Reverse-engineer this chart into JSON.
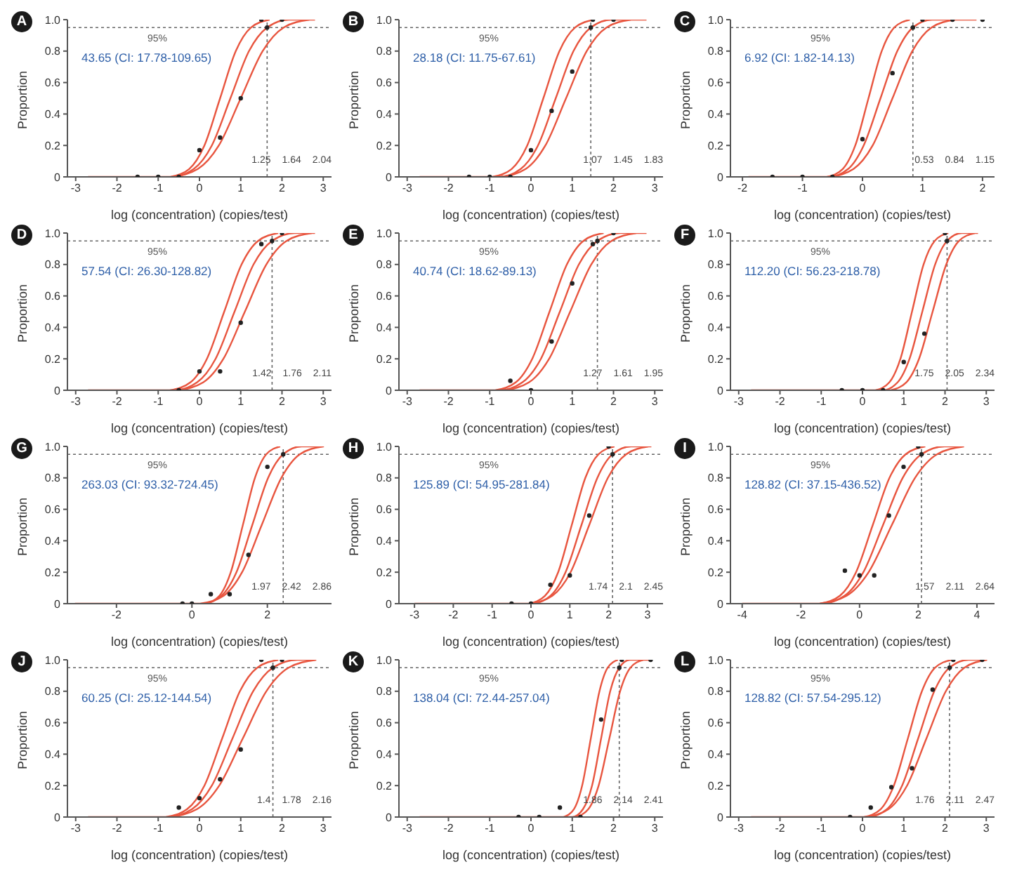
{
  "chart_data": [
    {
      "type": "line",
      "title": "A",
      "xlabel": "log (concentration) (copies/test)",
      "ylabel": "Proportion",
      "xlim": [
        -3.2,
        3.2
      ],
      "xticks": [
        -3,
        -2,
        -1,
        0,
        1,
        2,
        3
      ],
      "ylim": [
        0,
        1
      ],
      "yticks": [
        {
          "value": 0,
          "label": "0"
        },
        {
          "value": 0.2,
          "label": "0.2"
        },
        {
          "value": 0.4,
          "label": "0.4"
        },
        {
          "value": 0.6,
          "label": "0.6"
        },
        {
          "value": 0.8,
          "label": "0.8"
        },
        {
          "value": 1,
          "label": "1.0"
        }
      ],
      "line_style": "solid",
      "series": [
        {
          "color": "#e8553f",
          "x": [
            -0.7,
            -0.25,
            0.12,
            0.5,
            0.88,
            1.25,
            1.7
          ],
          "values": [
            0,
            0.05,
            0.2,
            0.5,
            0.8,
            0.95,
            1
          ]
        },
        {
          "color": "#e8553f",
          "x": [
            -2.7,
            -0.67,
            -0.14,
            0.3,
            0.75,
            1.2,
            1.64,
            2.17,
            2.8
          ],
          "values": [
            0,
            0,
            0.05,
            0.2,
            0.5,
            0.8,
            0.95,
            1,
            1
          ]
        },
        {
          "color": "#e8553f",
          "x": [
            -0.66,
            -0.04,
            0.47,
            1.0,
            1.53,
            2.04,
            2.66
          ],
          "values": [
            0,
            0.05,
            0.2,
            0.5,
            0.8,
            0.95,
            1
          ]
        },
        {
          "type": "scatter",
          "marker": "circle",
          "color": "#222222",
          "x": [
            -1.5,
            -1,
            -0.5,
            0,
            0.5,
            1,
            1.5,
            1.64,
            2
          ],
          "values": [
            0,
            0,
            0,
            0.17,
            0.25,
            0.5,
            1,
            0.95,
            1
          ]
        }
      ],
      "ref_lines": [
        {
          "axis": "y",
          "value": 0.95,
          "label": "95%",
          "line_style": "dotted",
          "color": "#666666"
        },
        {
          "axis": "x",
          "value": 1.64,
          "line_style": "dotted",
          "color": "#666666"
        }
      ],
      "annotations": [
        "43.65 (CI: 17.78-109.65)",
        "1.25",
        "1.64",
        "2.04"
      ]
    },
    {
      "type": "line",
      "title": "B",
      "xlabel": "log (concentration) (copies/test)",
      "ylabel": "Proportion",
      "xlim": [
        -3.2,
        3.2
      ],
      "xticks": [
        -3,
        -2,
        -1,
        0,
        1,
        2,
        3
      ],
      "ylim": [
        0,
        1
      ],
      "yticks": [
        {
          "value": 0,
          "label": "0"
        },
        {
          "value": 0.2,
          "label": "0.2"
        },
        {
          "value": 0.4,
          "label": "0.4"
        },
        {
          "value": 0.6,
          "label": "0.6"
        },
        {
          "value": 0.8,
          "label": "0.8"
        },
        {
          "value": 1,
          "label": "1.0"
        }
      ],
      "line_style": "solid",
      "series": [
        {
          "color": "#e8553f",
          "x": [
            -0.93,
            -0.47,
            -0.09,
            0.3,
            0.69,
            1.07,
            1.53
          ],
          "values": [
            0,
            0.05,
            0.2,
            0.5,
            0.8,
            0.95,
            1
          ]
        },
        {
          "color": "#e8553f",
          "x": [
            -2.7,
            -0.76,
            -0.25,
            0.17,
            0.6,
            1.03,
            1.45,
            1.96,
            2.8
          ],
          "values": [
            0,
            0,
            0.05,
            0.2,
            0.5,
            0.8,
            0.95,
            1,
            1
          ]
        },
        {
          "color": "#e8553f",
          "x": [
            -0.72,
            -0.13,
            0.35,
            0.85,
            1.35,
            1.83,
            2.42
          ],
          "values": [
            0,
            0.05,
            0.2,
            0.5,
            0.8,
            0.95,
            1
          ]
        },
        {
          "type": "scatter",
          "marker": "circle",
          "color": "#222222",
          "x": [
            -1.5,
            -1,
            -0.5,
            0,
            0.5,
            1,
            1.45,
            1.5,
            2
          ],
          "values": [
            0,
            0,
            0,
            0.17,
            0.42,
            0.67,
            0.95,
            1,
            1
          ]
        }
      ],
      "ref_lines": [
        {
          "axis": "y",
          "value": 0.95,
          "label": "95%",
          "line_style": "dotted",
          "color": "#666666"
        },
        {
          "axis": "x",
          "value": 1.45,
          "line_style": "dotted",
          "color": "#666666"
        }
      ],
      "annotations": [
        "28.18 (CI: 11.75-67.61)",
        "1.07",
        "1.45",
        "1.83"
      ]
    },
    {
      "type": "line",
      "title": "C",
      "xlabel": "log (concentration) (copies/test)",
      "ylabel": "Proportion",
      "xlim": [
        -2.2,
        2.2
      ],
      "xticks": [
        -2,
        -1,
        0,
        1,
        2
      ],
      "ylim": [
        0,
        1
      ],
      "yticks": [
        {
          "value": 0,
          "label": "0"
        },
        {
          "value": 0.2,
          "label": "0.2"
        },
        {
          "value": 0.4,
          "label": "0.4"
        },
        {
          "value": 0.6,
          "label": "0.6"
        },
        {
          "value": 0.8,
          "label": "0.8"
        },
        {
          "value": 1,
          "label": "1.0"
        }
      ],
      "line_style": "solid",
      "series": [
        {
          "color": "#e8553f",
          "x": [
            -0.59,
            -0.33,
            -0.12,
            0.1,
            0.32,
            0.53,
            0.79
          ],
          "values": [
            0,
            0.05,
            0.2,
            0.5,
            0.8,
            0.95,
            1
          ]
        },
        {
          "color": "#e8553f",
          "x": [
            -1.9,
            -0.56,
            -0.24,
            0.02,
            0.3,
            0.58,
            0.84,
            1.16,
            1.9
          ],
          "values": [
            0,
            0,
            0.05,
            0.2,
            0.5,
            0.8,
            0.95,
            1,
            1
          ]
        },
        {
          "color": "#e8553f",
          "x": [
            -0.54,
            -0.15,
            0.17,
            0.5,
            0.83,
            1.15,
            1.54
          ],
          "values": [
            0,
            0.05,
            0.2,
            0.5,
            0.8,
            0.95,
            1
          ]
        },
        {
          "type": "scatter",
          "marker": "circle",
          "color": "#222222",
          "x": [
            -1.5,
            -1,
            -0.5,
            0,
            0.5,
            0.84,
            1,
            1.5,
            2
          ],
          "values": [
            0,
            0,
            0,
            0.24,
            0.66,
            0.95,
            1,
            1,
            1
          ]
        }
      ],
      "ref_lines": [
        {
          "axis": "y",
          "value": 0.95,
          "label": "95%",
          "line_style": "dotted",
          "color": "#666666"
        },
        {
          "axis": "x",
          "value": 0.84,
          "line_style": "dotted",
          "color": "#666666"
        }
      ],
      "annotations": [
        "6.92 (CI: 1.82-14.13)",
        "0.53",
        "0.84",
        "1.15"
      ]
    },
    {
      "type": "line",
      "title": "D",
      "xlabel": "log (concentration) (copies/test)",
      "ylabel": "Proportion",
      "xlim": [
        -3.2,
        3.2
      ],
      "xticks": [
        -3,
        -2,
        -1,
        0,
        1,
        2,
        3
      ],
      "ylim": [
        0,
        1
      ],
      "yticks": [
        {
          "value": 0,
          "label": "0"
        },
        {
          "value": 0.2,
          "label": "0.2"
        },
        {
          "value": 0.4,
          "label": "0.4"
        },
        {
          "value": 0.6,
          "label": "0.6"
        },
        {
          "value": 0.8,
          "label": "0.8"
        },
        {
          "value": 1,
          "label": "1.0"
        }
      ],
      "line_style": "solid",
      "series": [
        {
          "color": "#e8553f",
          "x": [
            -0.71,
            -0.22,
            0.18,
            0.6,
            1.02,
            1.42,
            1.91
          ],
          "values": [
            0,
            0.05,
            0.2,
            0.5,
            0.8,
            0.95,
            1
          ]
        },
        {
          "color": "#e8553f",
          "x": [
            -2.7,
            -0.61,
            -0.06,
            0.39,
            0.85,
            1.31,
            1.76,
            2.31,
            2.8
          ],
          "values": [
            0,
            0,
            0.05,
            0.2,
            0.5,
            0.8,
            0.95,
            1,
            1
          ]
        },
        {
          "color": "#e8553f",
          "x": [
            -0.52,
            0.09,
            0.58,
            1.1,
            1.62,
            2.11,
            2.72
          ],
          "values": [
            0,
            0.05,
            0.2,
            0.5,
            0.8,
            0.95,
            1
          ]
        },
        {
          "type": "scatter",
          "marker": "circle",
          "color": "#222222",
          "x": [
            -0.5,
            0,
            0.5,
            1,
            1.5,
            1.76,
            2
          ],
          "values": [
            0,
            0.12,
            0.12,
            0.43,
            0.93,
            0.95,
            1
          ]
        }
      ],
      "ref_lines": [
        {
          "axis": "y",
          "value": 0.95,
          "label": "95%",
          "line_style": "dotted",
          "color": "#666666"
        },
        {
          "axis": "x",
          "value": 1.76,
          "line_style": "dotted",
          "color": "#666666"
        }
      ],
      "annotations": [
        "57.54 (CI: 26.30-128.82)",
        "1.42",
        "1.76",
        "2.11"
      ]
    },
    {
      "type": "line",
      "title": "E",
      "xlabel": "log (concentration) (copies/test)",
      "ylabel": "Proportion",
      "xlim": [
        -3.2,
        3.2
      ],
      "xticks": [
        -3,
        -2,
        -1,
        0,
        1,
        2,
        3
      ],
      "ylim": [
        0,
        1
      ],
      "yticks": [
        {
          "value": 0,
          "label": "0"
        },
        {
          "value": 0.2,
          "label": "0.2"
        },
        {
          "value": 0.4,
          "label": "0.4"
        },
        {
          "value": 0.6,
          "label": "0.6"
        },
        {
          "value": 0.8,
          "label": "0.8"
        },
        {
          "value": 1,
          "label": "1.0"
        }
      ],
      "line_style": "solid",
      "series": [
        {
          "color": "#e8553f",
          "x": [
            -0.86,
            -0.37,
            0.03,
            0.45,
            0.87,
            1.27,
            1.76
          ],
          "values": [
            0,
            0.05,
            0.2,
            0.5,
            0.8,
            0.95,
            1
          ]
        },
        {
          "color": "#e8553f",
          "x": [
            -2.7,
            -0.76,
            -0.21,
            0.24,
            0.7,
            1.16,
            1.61,
            2.16,
            2.8
          ],
          "values": [
            0,
            0,
            0.05,
            0.2,
            0.5,
            0.8,
            0.95,
            1,
            1
          ]
        },
        {
          "color": "#e8553f",
          "x": [
            -0.65,
            -0.05,
            0.44,
            0.95,
            1.46,
            1.95,
            2.55
          ],
          "values": [
            0,
            0.05,
            0.2,
            0.5,
            0.8,
            0.95,
            1
          ]
        },
        {
          "type": "scatter",
          "marker": "circle",
          "color": "#222222",
          "x": [
            -0.5,
            0,
            0.5,
            1,
            1.5,
            1.61,
            2
          ],
          "values": [
            0.06,
            0,
            0.31,
            0.68,
            0.93,
            0.95,
            1
          ]
        }
      ],
      "ref_lines": [
        {
          "axis": "y",
          "value": 0.95,
          "label": "95%",
          "line_style": "dotted",
          "color": "#666666"
        },
        {
          "axis": "x",
          "value": 1.61,
          "line_style": "dotted",
          "color": "#666666"
        }
      ],
      "annotations": [
        "40.74 (CI: 18.62-89.13)",
        "1.27",
        "1.61",
        "1.95"
      ]
    },
    {
      "type": "line",
      "title": "F",
      "xlabel": "log (concentration) (copies/test)",
      "ylabel": "Proportion",
      "xlim": [
        -3.2,
        3.2
      ],
      "xticks": [
        -3,
        -2,
        -1,
        0,
        1,
        2,
        3
      ],
      "ylim": [
        0,
        1
      ],
      "yticks": [
        {
          "value": 0,
          "label": "0"
        },
        {
          "value": 0.2,
          "label": "0.2"
        },
        {
          "value": 0.4,
          "label": "0.4"
        },
        {
          "value": 0.6,
          "label": "0.6"
        },
        {
          "value": 0.8,
          "label": "0.8"
        },
        {
          "value": 1,
          "label": "1.0"
        }
      ],
      "line_style": "solid",
      "series": [
        {
          "color": "#e8553f",
          "x": [
            0.32,
            0.65,
            0.92,
            1.2,
            1.48,
            1.75,
            2.08
          ],
          "values": [
            0,
            0.05,
            0.2,
            0.5,
            0.8,
            0.95,
            1
          ]
        },
        {
          "color": "#e8553f",
          "x": [
            -2.7,
            0.49,
            0.85,
            1.14,
            1.45,
            1.76,
            2.05,
            2.41,
            2.8
          ],
          "values": [
            0,
            0,
            0.05,
            0.2,
            0.5,
            0.8,
            0.95,
            1,
            1
          ]
        },
        {
          "color": "#e8553f",
          "x": [
            0.68,
            1.06,
            1.37,
            1.7,
            2.03,
            2.34,
            2.72
          ],
          "values": [
            0,
            0.05,
            0.2,
            0.5,
            0.8,
            0.95,
            1
          ]
        },
        {
          "type": "scatter",
          "marker": "circle",
          "color": "#222222",
          "x": [
            -0.5,
            0,
            0.5,
            1,
            1.5,
            2,
            2.05
          ],
          "values": [
            0,
            0,
            0,
            0.18,
            0.36,
            1,
            0.95
          ]
        }
      ],
      "ref_lines": [
        {
          "axis": "y",
          "value": 0.95,
          "label": "95%",
          "line_style": "dotted",
          "color": "#666666"
        },
        {
          "axis": "x",
          "value": 2.05,
          "line_style": "dotted",
          "color": "#666666"
        }
      ],
      "annotations": [
        "112.20 (CI: 56.23-218.78)",
        "1.75",
        "2.05",
        "2.34"
      ]
    },
    {
      "type": "line",
      "title": "G",
      "xlabel": "log (concentration) (copies/test)",
      "ylabel": "Proportion",
      "xlim": [
        -3.3,
        3.7
      ],
      "xticks": [
        -2,
        0,
        2
      ],
      "ylim": [
        0,
        1
      ],
      "yticks": [
        {
          "value": 0,
          "label": "0"
        },
        {
          "value": 0.2,
          "label": "0.2"
        },
        {
          "value": 0.4,
          "label": "0.4"
        },
        {
          "value": 0.6,
          "label": "0.6"
        },
        {
          "value": 0.8,
          "label": "0.8"
        },
        {
          "value": 1,
          "label": "1.0"
        }
      ],
      "line_style": "solid",
      "series": [
        {
          "color": "#e8553f",
          "x": [
            0.36,
            0.73,
            1.03,
            1.35,
            1.67,
            1.97,
            2.34
          ],
          "values": [
            0,
            0.05,
            0.2,
            0.5,
            0.8,
            0.95,
            1
          ]
        },
        {
          "color": "#e8553f",
          "x": [
            -3.1,
            0.29,
            0.78,
            1.18,
            1.6,
            2.02,
            2.42,
            2.91,
            3.5
          ],
          "values": [
            0,
            0,
            0.05,
            0.2,
            0.5,
            0.8,
            0.95,
            1,
            1
          ]
        },
        {
          "color": "#e8553f",
          "x": [
            0.23,
            0.84,
            1.33,
            1.85,
            2.37,
            2.86,
            3.47
          ],
          "values": [
            0,
            0.05,
            0.2,
            0.5,
            0.8,
            0.95,
            1
          ]
        },
        {
          "type": "scatter",
          "marker": "circle",
          "color": "#222222",
          "x": [
            -0.25,
            0,
            0.5,
            1,
            1.5,
            2,
            2.42
          ],
          "values": [
            0,
            0,
            0.06,
            0.06,
            0.31,
            0.87,
            0.95
          ]
        }
      ],
      "ref_lines": [
        {
          "axis": "y",
          "value": 0.95,
          "label": "95%",
          "line_style": "dotted",
          "color": "#666666"
        },
        {
          "axis": "x",
          "value": 2.42,
          "line_style": "dotted",
          "color": "#666666"
        }
      ],
      "annotations": [
        "263.03 (CI: 93.32-724.45)",
        "1.97",
        "2.42",
        "2.86"
      ]
    },
    {
      "type": "line",
      "title": "H",
      "xlabel": "log (concentration) (copies/test)",
      "ylabel": "Proportion",
      "xlim": [
        -3.4,
        3.4
      ],
      "xticks": [
        -3,
        -2,
        -1,
        0,
        1,
        2,
        3
      ],
      "ylim": [
        0,
        1
      ],
      "yticks": [
        {
          "value": 0,
          "label": "0"
        },
        {
          "value": 0.2,
          "label": "0.2"
        },
        {
          "value": 0.4,
          "label": "0.4"
        },
        {
          "value": 0.6,
          "label": "0.6"
        },
        {
          "value": 0.8,
          "label": "0.8"
        },
        {
          "value": 1,
          "label": "1.0"
        }
      ],
      "line_style": "solid",
      "series": [
        {
          "color": "#e8553f",
          "x": [
            -0.05,
            0.36,
            0.7,
            1.05,
            1.4,
            1.74,
            2.15
          ],
          "values": [
            0,
            0.05,
            0.2,
            0.5,
            0.8,
            0.95,
            1
          ]
        },
        {
          "color": "#e8553f",
          "x": [
            -3.0,
            0.02,
            0.5,
            0.89,
            1.3,
            1.71,
            2.1,
            2.58,
            3.1
          ],
          "values": [
            0,
            0,
            0.05,
            0.2,
            0.5,
            0.8,
            0.95,
            1,
            1
          ]
        },
        {
          "color": "#e8553f",
          "x": [
            -0.02,
            0.55,
            1.02,
            1.5,
            1.98,
            2.45,
            3.02
          ],
          "values": [
            0,
            0.05,
            0.2,
            0.5,
            0.8,
            0.95,
            1
          ]
        },
        {
          "type": "scatter",
          "marker": "circle",
          "color": "#222222",
          "x": [
            -0.5,
            0,
            0.5,
            1,
            1.5,
            2,
            2.1
          ],
          "values": [
            0,
            0,
            0.12,
            0.18,
            0.56,
            1,
            0.95
          ]
        }
      ],
      "ref_lines": [
        {
          "axis": "y",
          "value": 0.95,
          "label": "95%",
          "line_style": "dotted",
          "color": "#666666"
        },
        {
          "axis": "x",
          "value": 2.1,
          "line_style": "dotted",
          "color": "#666666"
        }
      ],
      "annotations": [
        "125.89 (CI: 54.95-281.84)",
        "1.74",
        "2.1",
        "2.45"
      ]
    },
    {
      "type": "line",
      "title": "I",
      "xlabel": "log (concentration) (copies/test)",
      "ylabel": "Proportion",
      "xlim": [
        -4.4,
        4.6
      ],
      "xticks": [
        -4,
        -2,
        0,
        2,
        4
      ],
      "ylim": [
        0,
        1
      ],
      "yticks": [
        {
          "value": 0,
          "label": "0"
        },
        {
          "value": 0.2,
          "label": "0.2"
        },
        {
          "value": 0.4,
          "label": "0.4"
        },
        {
          "value": 0.6,
          "label": "0.6"
        },
        {
          "value": 0.8,
          "label": "0.8"
        },
        {
          "value": 1,
          "label": "1.0"
        }
      ],
      "line_style": "solid",
      "series": [
        {
          "color": "#e8553f",
          "x": [
            -1.34,
            -0.67,
            -0.12,
            0.45,
            1.02,
            1.57,
            2.24
          ],
          "values": [
            0,
            0.05,
            0.2,
            0.5,
            0.8,
            0.95,
            1
          ]
        },
        {
          "color": "#e8553f",
          "x": [
            -4.0,
            -1.3,
            -0.51,
            0.13,
            0.8,
            1.47,
            2.11,
            2.9,
            3.5
          ],
          "values": [
            0,
            0,
            0.05,
            0.2,
            0.5,
            0.8,
            0.95,
            1,
            1
          ]
        },
        {
          "color": "#e8553f",
          "x": [
            -1.36,
            -0.44,
            0.31,
            1.1,
            1.89,
            2.64,
            3.56
          ],
          "values": [
            0,
            0.05,
            0.2,
            0.5,
            0.8,
            0.95,
            1
          ]
        },
        {
          "type": "scatter",
          "marker": "circle",
          "color": "#222222",
          "x": [
            -0.5,
            0,
            0.5,
            1,
            1.5,
            2,
            2.11
          ],
          "values": [
            0.21,
            0.18,
            0.18,
            0.56,
            0.87,
            1,
            0.95
          ]
        }
      ],
      "ref_lines": [
        {
          "axis": "y",
          "value": 0.95,
          "label": "95%",
          "line_style": "dotted",
          "color": "#666666"
        },
        {
          "axis": "x",
          "value": 2.11,
          "line_style": "dotted",
          "color": "#666666"
        }
      ],
      "annotations": [
        "128.82 (CI: 37.15-436.52)",
        "1.57",
        "2.11",
        "2.64"
      ]
    },
    {
      "type": "line",
      "title": "J",
      "xlabel": "log (concentration) (copies/test)",
      "ylabel": "Proportion",
      "xlim": [
        -3.2,
        3.2
      ],
      "xticks": [
        -3,
        -2,
        -1,
        0,
        1,
        2,
        3
      ],
      "ylim": [
        0,
        1
      ],
      "yticks": [
        {
          "value": 0,
          "label": "0"
        },
        {
          "value": 0.2,
          "label": "0.2"
        },
        {
          "value": 0.4,
          "label": "0.4"
        },
        {
          "value": 0.6,
          "label": "0.6"
        },
        {
          "value": 0.8,
          "label": "0.8"
        },
        {
          "value": 1,
          "label": "1.0"
        }
      ],
      "line_style": "solid",
      "series": [
        {
          "color": "#e8553f",
          "x": [
            -0.81,
            -0.3,
            0.12,
            0.55,
            0.98,
            1.4,
            1.91
          ],
          "values": [
            0,
            0.05,
            0.2,
            0.5,
            0.8,
            0.95,
            1
          ]
        },
        {
          "color": "#e8553f",
          "x": [
            -2.7,
            -0.77,
            -0.18,
            0.3,
            0.8,
            1.3,
            1.78,
            2.37,
            2.8
          ],
          "values": [
            0,
            0,
            0.05,
            0.2,
            0.5,
            0.8,
            0.95,
            1,
            1
          ]
        },
        {
          "color": "#e8553f",
          "x": [
            -0.73,
            -0.06,
            0.48,
            1.05,
            1.62,
            2.16,
            2.83
          ],
          "values": [
            0,
            0.05,
            0.2,
            0.5,
            0.8,
            0.95,
            1
          ]
        },
        {
          "type": "scatter",
          "marker": "circle",
          "color": "#222222",
          "x": [
            -0.5,
            0,
            0.5,
            1,
            1.5,
            1.78,
            2
          ],
          "values": [
            0.06,
            0.12,
            0.24,
            0.43,
            1,
            0.95,
            1
          ]
        }
      ],
      "ref_lines": [
        {
          "axis": "y",
          "value": 0.95,
          "label": "95%",
          "line_style": "dotted",
          "color": "#666666"
        },
        {
          "axis": "x",
          "value": 1.78,
          "line_style": "dotted",
          "color": "#666666"
        }
      ],
      "annotations": [
        "60.25 (CI: 25.12-144.54)",
        "1.4",
        "1.78",
        "2.16"
      ]
    },
    {
      "type": "line",
      "title": "K",
      "xlabel": "log (concentration) (copies/test)",
      "ylabel": "Proportion",
      "xlim": [
        -3.2,
        3.2
      ],
      "xticks": [
        -3,
        -2,
        -1,
        0,
        1,
        2,
        3
      ],
      "ylim": [
        0,
        1
      ],
      "yticks": [
        {
          "value": 0,
          "label": "0"
        },
        {
          "value": 0.2,
          "label": "0.2"
        },
        {
          "value": 0.4,
          "label": "0.4"
        },
        {
          "value": 0.6,
          "label": "0.6"
        },
        {
          "value": 0.8,
          "label": "0.8"
        },
        {
          "value": 1,
          "label": "1.0"
        }
      ],
      "line_style": "solid",
      "series": [
        {
          "color": "#e8553f",
          "x": [
            0.79,
            1.04,
            1.24,
            1.45,
            1.66,
            1.86,
            2.11
          ],
          "values": [
            0,
            0.05,
            0.2,
            0.5,
            0.8,
            0.95,
            1
          ]
        },
        {
          "color": "#e8553f",
          "x": [
            -2.7,
            1.0,
            1.26,
            1.48,
            1.7,
            1.92,
            2.14,
            2.4,
            2.9
          ],
          "values": [
            0,
            0,
            0.05,
            0.2,
            0.5,
            0.8,
            0.95,
            1,
            1
          ]
        },
        {
          "color": "#e8553f",
          "x": [
            1.08,
            1.39,
            1.64,
            1.9,
            2.16,
            2.41,
            2.72
          ],
          "values": [
            0,
            0.05,
            0.2,
            0.5,
            0.8,
            0.95,
            1
          ]
        },
        {
          "type": "scatter",
          "marker": "circle",
          "color": "#222222",
          "x": [
            -0.3,
            0.2,
            0.7,
            1.2,
            1.7,
            2.14,
            2.2,
            2.9
          ],
          "values": [
            0,
            0,
            0.06,
            0,
            0.62,
            0.95,
            1,
            1
          ]
        }
      ],
      "ref_lines": [
        {
          "axis": "y",
          "value": 0.95,
          "label": "95%",
          "line_style": "dotted",
          "color": "#666666"
        },
        {
          "axis": "x",
          "value": 2.14,
          "line_style": "dotted",
          "color": "#666666"
        }
      ],
      "annotations": [
        "138.04 (CI: 72.44-257.04)",
        "1.86",
        "2.14",
        "2.41"
      ]
    },
    {
      "type": "line",
      "title": "L",
      "xlabel": "log (concentration) (copies/test)",
      "ylabel": "Proportion",
      "xlim": [
        -3.2,
        3.2
      ],
      "xticks": [
        -3,
        -2,
        -1,
        0,
        1,
        2,
        3
      ],
      "ylim": [
        0,
        1
      ],
      "yticks": [
        {
          "value": 0,
          "label": "0"
        },
        {
          "value": 0.2,
          "label": "0.2"
        },
        {
          "value": 0.4,
          "label": "0.4"
        },
        {
          "value": 0.6,
          "label": "0.6"
        },
        {
          "value": 0.8,
          "label": "0.8"
        },
        {
          "value": 1,
          "label": "1.0"
        }
      ],
      "line_style": "solid",
      "series": [
        {
          "color": "#e8553f",
          "x": [
            0.04,
            0.44,
            0.76,
            1.1,
            1.44,
            1.76,
            2.16
          ],
          "values": [
            0,
            0.05,
            0.2,
            0.5,
            0.8,
            0.95,
            1
          ]
        },
        {
          "color": "#e8553f",
          "x": [
            -2.7,
            0.13,
            0.59,
            0.96,
            1.35,
            1.74,
            2.11,
            2.57,
            2.9
          ],
          "values": [
            0,
            0,
            0.05,
            0.2,
            0.5,
            0.8,
            0.95,
            1,
            1
          ]
        },
        {
          "color": "#e8553f",
          "x": [
            0.08,
            0.63,
            1.08,
            1.55,
            2.02,
            2.47,
            3.02
          ],
          "values": [
            0,
            0.05,
            0.2,
            0.5,
            0.8,
            0.95,
            1
          ]
        },
        {
          "type": "scatter",
          "marker": "circle",
          "color": "#222222",
          "x": [
            -0.3,
            0.2,
            0.7,
            1.2,
            1.7,
            2.11,
            2.2,
            2.9
          ],
          "values": [
            0,
            0.06,
            0.19,
            0.31,
            0.81,
            0.95,
            1,
            1
          ]
        }
      ],
      "ref_lines": [
        {
          "axis": "y",
          "value": 0.95,
          "label": "95%",
          "line_style": "dotted",
          "color": "#666666"
        },
        {
          "axis": "x",
          "value": 2.11,
          "line_style": "dotted",
          "color": "#666666"
        }
      ],
      "annotations": [
        "128.82 (CI: 57.54-295.12)",
        "1.76",
        "2.11",
        "2.47"
      ]
    }
  ]
}
